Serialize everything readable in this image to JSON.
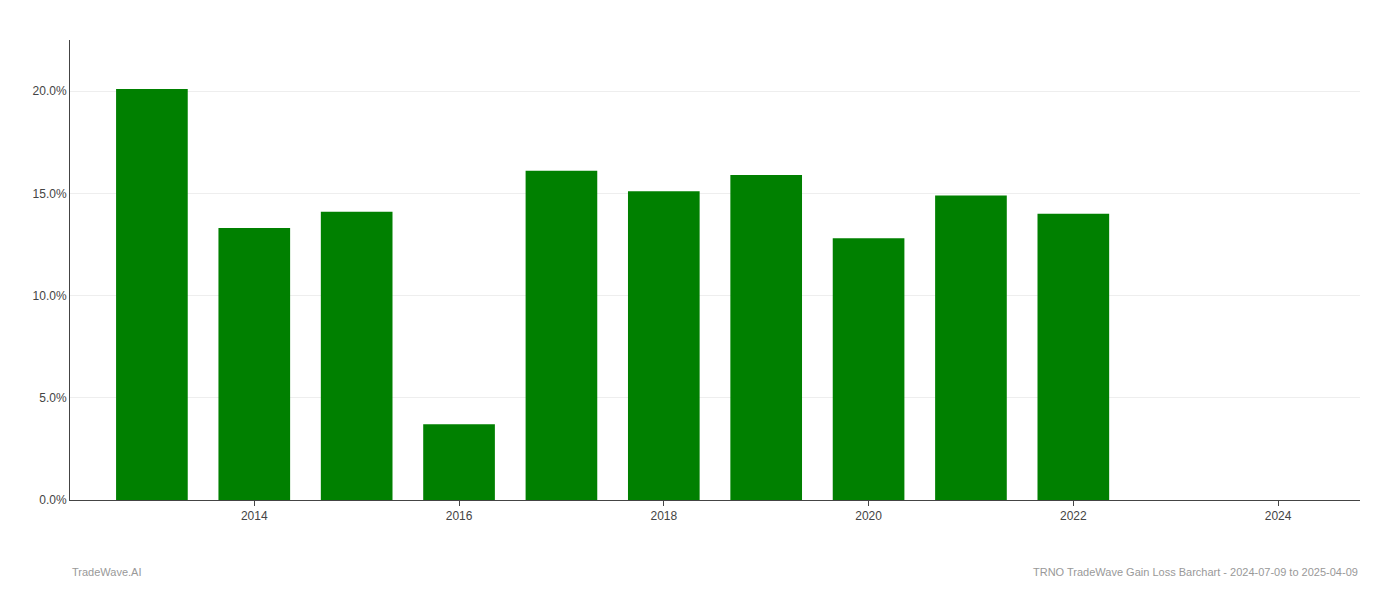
{
  "chart_data": {
    "type": "bar",
    "x": [
      2013,
      2014,
      2015,
      2016,
      2017,
      2018,
      2019,
      2020,
      2021,
      2022
    ],
    "values": [
      0.201,
      0.133,
      0.141,
      0.037,
      0.161,
      0.151,
      0.159,
      0.128,
      0.149,
      0.14
    ],
    "color": "#008000",
    "xlim": [
      2012.2,
      2024.8
    ],
    "xticks": [
      2014,
      2016,
      2018,
      2020,
      2022,
      2024
    ],
    "ylim": [
      0,
      0.225
    ],
    "yticks": [
      {
        "value": 0.0,
        "label": "0.0%"
      },
      {
        "value": 0.05,
        "label": "5.0%"
      },
      {
        "value": 0.1,
        "label": "10.0%"
      },
      {
        "value": 0.15,
        "label": "15.0%"
      },
      {
        "value": 0.2,
        "label": "20.0%"
      }
    ],
    "grid": true,
    "annotations": [
      "TradeWave.AI",
      "TRNO TradeWave Gain Loss Barchart - 2024-07-09 to 2025-04-09"
    ]
  }
}
